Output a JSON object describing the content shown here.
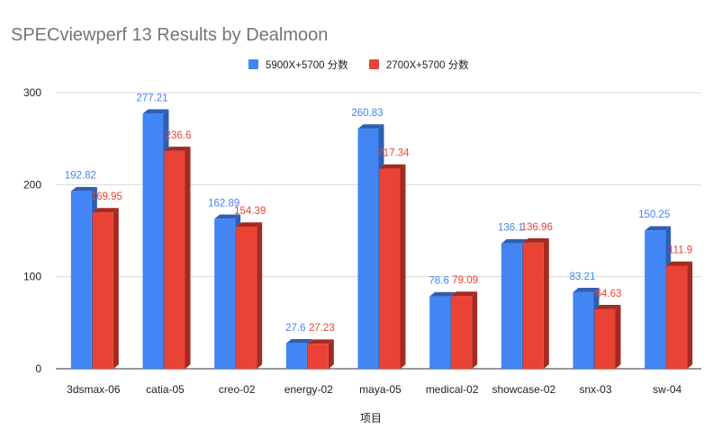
{
  "chart_data": {
    "type": "bar",
    "title": "SPECviewperf 13 Results by Dealmoon",
    "xlabel": "项目",
    "ylabel": "",
    "ylim": [
      0,
      300
    ],
    "yticks": [
      0,
      100,
      200,
      300
    ],
    "grid": true,
    "legend_position": "top",
    "categories": [
      "3dsmax-06",
      "catia-05",
      "creo-02",
      "energy-02",
      "maya-05",
      "medical-02",
      "showcase-02",
      "snx-03",
      "sw-04"
    ],
    "series": [
      {
        "name": "5900X+5700 分数",
        "color": "#4285f4",
        "side_color": "#2f5fb3",
        "label_color": "#4285f4",
        "values": [
          192.82,
          277.21,
          162.89,
          27.6,
          260.83,
          78.6,
          136.1,
          83.21,
          150.25
        ],
        "labels": [
          "192.82",
          "277.21",
          "162.89",
          "27.6",
          "260.83",
          "78.6",
          "136.1",
          "83.21",
          "150.25"
        ]
      },
      {
        "name": "2700X+5700 分数",
        "color": "#ea4335",
        "side_color": "#a52a20",
        "label_color": "#ea4335",
        "values": [
          169.95,
          236.6,
          154.39,
          27.23,
          217.34,
          79.09,
          136.96,
          64.63,
          111.9
        ],
        "labels": [
          "169.95",
          "236.6",
          "154.39",
          "27.23",
          "217.34",
          "79.09",
          "136.96",
          "64.63",
          "111.9"
        ]
      }
    ]
  }
}
